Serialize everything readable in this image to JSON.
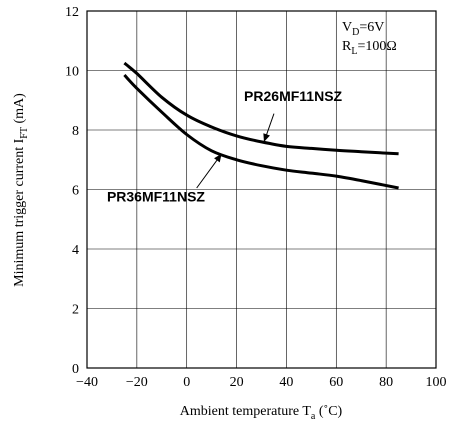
{
  "chart_data": {
    "type": "line",
    "xlabel": {
      "main": "Ambient temperature T",
      "sub": "a",
      "unit": " (˚C)"
    },
    "ylabel": {
      "main": "Minimum trigger current I",
      "sub": "FT",
      "unit": " (mA)"
    },
    "xlim": [
      -40,
      100
    ],
    "ylim": [
      0,
      12
    ],
    "xticks": [
      -40,
      -20,
      0,
      20,
      40,
      60,
      80,
      100
    ],
    "yticks": [
      0,
      2,
      4,
      6,
      8,
      10,
      12
    ],
    "xtick_labels": [
      "−40",
      "−20",
      "0",
      "20",
      "40",
      "60",
      "80",
      "100"
    ],
    "ytick_labels": [
      "0",
      "2",
      "4",
      "6",
      "8",
      "10",
      "12"
    ],
    "grid": true,
    "conditions": [
      {
        "main": "V",
        "sub": "D",
        "rest": "=6V"
      },
      {
        "main": "R",
        "sub": "L",
        "rest": "=100Ω"
      }
    ],
    "series": [
      {
        "name": "PR26MF11NSZ",
        "x": [
          -25,
          -20,
          -10,
          0,
          10,
          20,
          30,
          40,
          50,
          60,
          70,
          85
        ],
        "y": [
          10.25,
          9.9,
          9.1,
          8.5,
          8.1,
          7.8,
          7.6,
          7.45,
          7.38,
          7.32,
          7.27,
          7.2
        ]
      },
      {
        "name": "PR36MF11NSZ",
        "x": [
          -25,
          -20,
          -10,
          0,
          10,
          20,
          30,
          40,
          50,
          60,
          70,
          85
        ],
        "y": [
          9.85,
          9.4,
          8.6,
          7.85,
          7.3,
          7.0,
          6.8,
          6.65,
          6.55,
          6.45,
          6.3,
          6.05
        ]
      }
    ],
    "annotations": [
      {
        "series": "PR26MF11NSZ",
        "text": "PR26MF11NSZ",
        "label_at": [
          23,
          8.98
        ],
        "arrow_from": [
          35,
          8.55
        ],
        "arrow_to": [
          31,
          7.6
        ]
      },
      {
        "series": "PR36MF11NSZ",
        "text": "PR36MF11NSZ",
        "label_at": [
          -32,
          5.6
        ],
        "arrow_from": [
          4,
          6.05
        ],
        "arrow_to": [
          14,
          7.2
        ]
      }
    ]
  }
}
